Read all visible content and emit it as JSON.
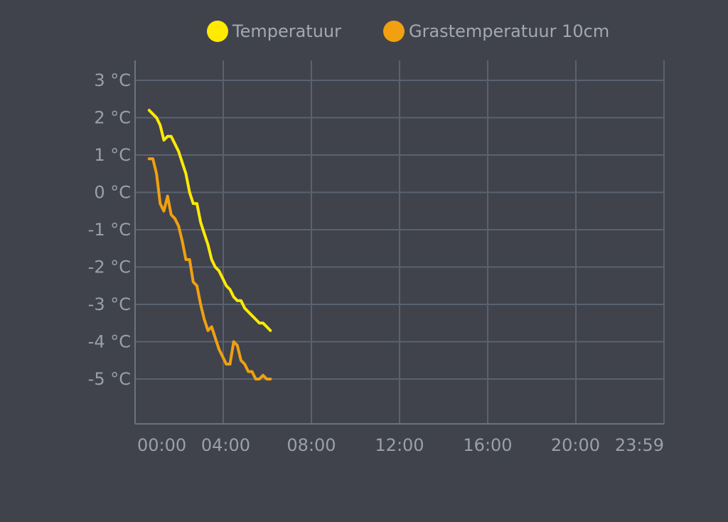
{
  "chart_data": {
    "type": "line",
    "title": "",
    "xlabel": "",
    "ylabel": "",
    "ylim": [
      -6.2,
      3.5
    ],
    "y_ticks": [
      3,
      2,
      1,
      0,
      -1,
      -2,
      -3,
      -4,
      -5
    ],
    "y_tick_labels": [
      "3 °C",
      "2 °C",
      "1 °C",
      "0 °C",
      "-1 °C",
      "-2 °C",
      "-3 °C",
      "-4 °C",
      "-5 °C"
    ],
    "x_ticks": [
      "00:00",
      "04:00",
      "08:00",
      "12:00",
      "16:00",
      "20:00",
      "23:59"
    ],
    "grid": true,
    "legend_position": "top-center",
    "colors": {
      "background": "#40434c",
      "grid": "#5a6270",
      "axis": "#6b7380"
    },
    "series": [
      {
        "name": "Temperatuur",
        "color": "#ffea00",
        "points": [
          [
            "-0:10",
            2.2
          ],
          [
            "0:00",
            2.1
          ],
          [
            "0:10",
            2.0
          ],
          [
            "0:20",
            1.8
          ],
          [
            "0:30",
            1.4
          ],
          [
            "0:40",
            1.5
          ],
          [
            "0:50",
            1.5
          ],
          [
            "1:00",
            1.3
          ],
          [
            "1:10",
            1.1
          ],
          [
            "1:20",
            0.8
          ],
          [
            "1:30",
            0.5
          ],
          [
            "1:40",
            0.0
          ],
          [
            "1:50",
            -0.3
          ],
          [
            "2:00",
            -0.3
          ],
          [
            "2:10",
            -0.8
          ],
          [
            "2:20",
            -1.1
          ],
          [
            "2:30",
            -1.4
          ],
          [
            "2:40",
            -1.8
          ],
          [
            "2:50",
            -2.0
          ],
          [
            "3:00",
            -2.1
          ],
          [
            "3:10",
            -2.3
          ],
          [
            "3:20",
            -2.5
          ],
          [
            "3:30",
            -2.6
          ],
          [
            "3:40",
            -2.8
          ],
          [
            "3:50",
            -2.9
          ],
          [
            "4:00",
            -2.9
          ],
          [
            "4:10",
            -3.1
          ],
          [
            "4:20",
            -3.2
          ],
          [
            "4:30",
            -3.3
          ],
          [
            "4:40",
            -3.4
          ],
          [
            "4:50",
            -3.5
          ],
          [
            "5:00",
            -3.5
          ],
          [
            "5:10",
            -3.6
          ],
          [
            "5:20",
            -3.7
          ]
        ]
      },
      {
        "name": "Grastemperatuur 10cm",
        "color": "#f0a010",
        "points": [
          [
            "-0:10",
            0.9
          ],
          [
            "0:00",
            0.9
          ],
          [
            "0:10",
            0.5
          ],
          [
            "0:20",
            -0.3
          ],
          [
            "0:30",
            -0.5
          ],
          [
            "0:40",
            -0.1
          ],
          [
            "0:50",
            -0.6
          ],
          [
            "1:00",
            -0.7
          ],
          [
            "1:10",
            -0.9
          ],
          [
            "1:20",
            -1.3
          ],
          [
            "1:30",
            -1.8
          ],
          [
            "1:40",
            -1.8
          ],
          [
            "1:50",
            -2.4
          ],
          [
            "2:00",
            -2.5
          ],
          [
            "2:10",
            -3.0
          ],
          [
            "2:20",
            -3.4
          ],
          [
            "2:30",
            -3.7
          ],
          [
            "2:40",
            -3.6
          ],
          [
            "2:50",
            -3.9
          ],
          [
            "3:00",
            -4.2
          ],
          [
            "3:10",
            -4.4
          ],
          [
            "3:20",
            -4.6
          ],
          [
            "3:30",
            -4.6
          ],
          [
            "3:40",
            -4.0
          ],
          [
            "3:50",
            -4.1
          ],
          [
            "4:00",
            -4.5
          ],
          [
            "4:10",
            -4.6
          ],
          [
            "4:20",
            -4.8
          ],
          [
            "4:30",
            -4.8
          ],
          [
            "4:40",
            -5.0
          ],
          [
            "4:50",
            -5.0
          ],
          [
            "5:00",
            -4.9
          ],
          [
            "5:10",
            -5.0
          ],
          [
            "5:20",
            -5.0
          ]
        ]
      }
    ]
  }
}
